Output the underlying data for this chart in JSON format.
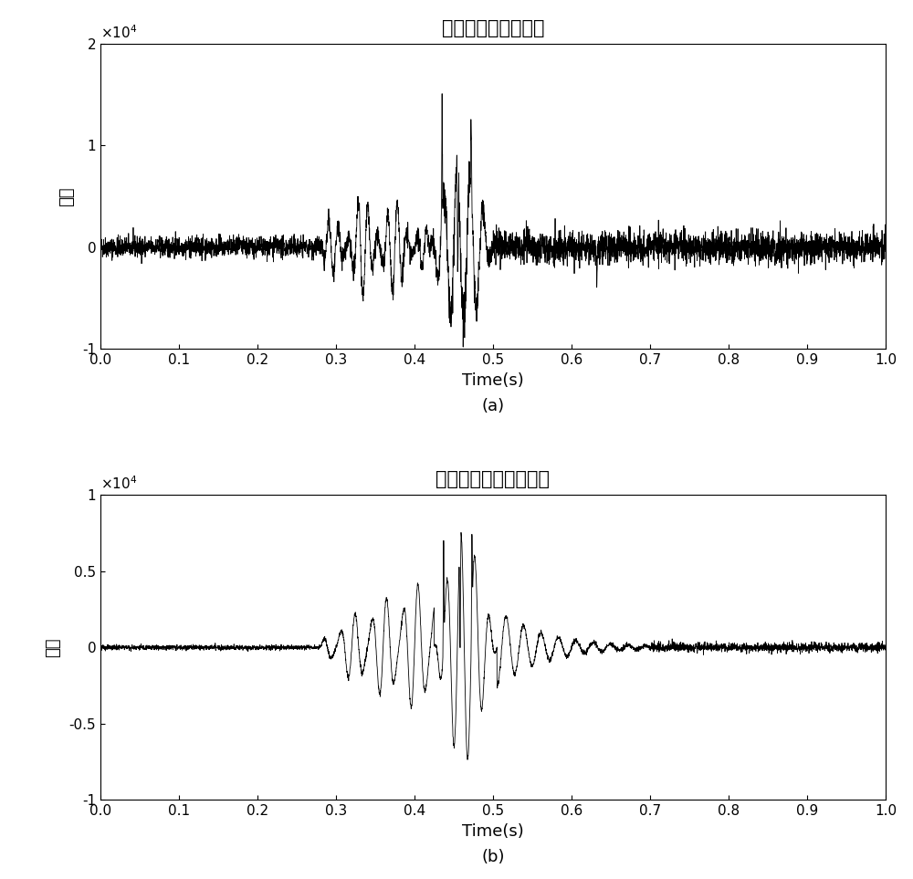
{
  "title_a": "含有噪音的微震波形",
  "title_b": "噪音压制后的微震波形",
  "xlabel": "Time(s)",
  "ylabel": "幅值",
  "label_a": "(a)",
  "label_b": "(b)",
  "xlim": [
    0,
    1
  ],
  "ylim_a": [
    -10000,
    20000
  ],
  "ylim_b": [
    -10000,
    10000
  ],
  "yticks_a": [
    -10000,
    0,
    10000,
    20000
  ],
  "ytick_labels_a": [
    "-1",
    "0",
    "1",
    "2"
  ],
  "yticks_b": [
    -10000,
    -5000,
    0,
    5000,
    10000
  ],
  "ytick_labels_b": [
    "-1",
    "-0.5",
    "0",
    "0.5",
    "1"
  ],
  "xticks": [
    0,
    0.1,
    0.2,
    0.3,
    0.4,
    0.5,
    0.6,
    0.7,
    0.8,
    0.9,
    1.0
  ],
  "line_color": "#000000",
  "bg_color": "#ffffff"
}
